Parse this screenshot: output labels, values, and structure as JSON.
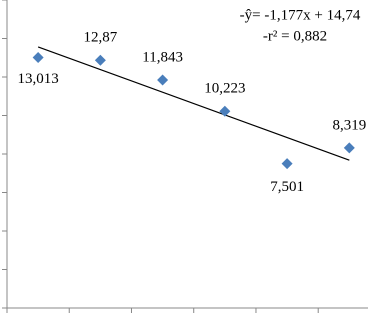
{
  "chart_data": {
    "type": "scatter",
    "x": [
      1,
      2,
      3,
      4,
      5,
      6
    ],
    "values": [
      13.013,
      12.87,
      11.843,
      10.223,
      7.501,
      8.319
    ],
    "value_labels": [
      "13,013",
      "12,87",
      "11,843",
      "10,223",
      "7,501",
      "8,319"
    ],
    "color": "#4a7ebb",
    "trendline": {
      "slope": -1.177,
      "intercept": 14.74,
      "color": "#000000"
    },
    "annotations": [
      "-ŷ= -1,177x + 14,74",
      "-r² = 0,882"
    ],
    "xlim": [
      0.5,
      6.3
    ],
    "xticks": [
      0.5,
      1.5,
      2.5,
      3.5,
      4.5,
      5.5
    ],
    "ylim": [
      0,
      16
    ],
    "yticks": [
      0,
      2,
      4,
      6,
      8,
      10,
      12,
      14,
      16
    ]
  }
}
